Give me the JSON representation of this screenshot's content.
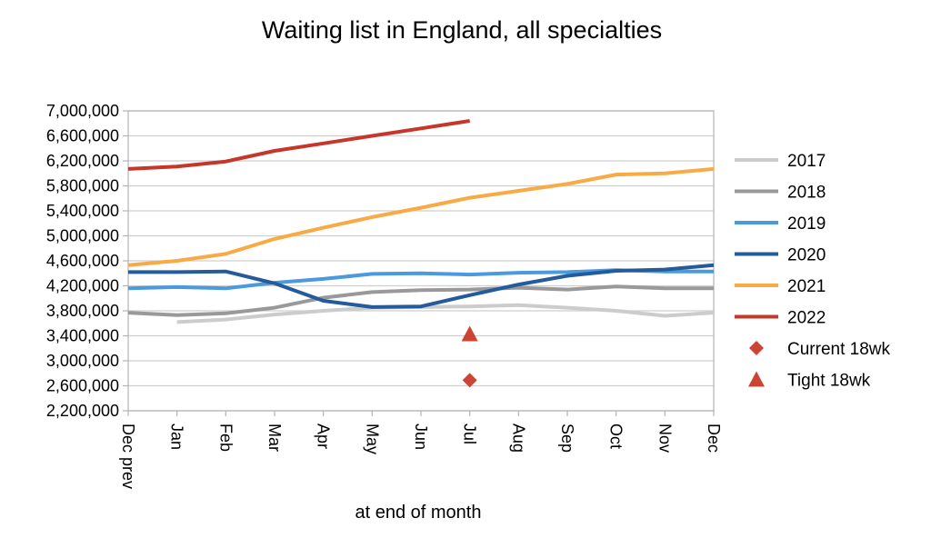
{
  "chart_data": {
    "type": "line",
    "title": "Waiting list in England, all specialties",
    "xlabel": "at end of month",
    "ylabel": "",
    "ylim": [
      2200000,
      7000000
    ],
    "y_ticks": [
      7000000,
      6600000,
      6200000,
      5800000,
      5400000,
      5000000,
      4600000,
      4200000,
      3800000,
      3400000,
      3000000,
      2600000,
      2200000
    ],
    "y_tick_labels": [
      "7,000,000",
      "6,600,000",
      "6,200,000",
      "5,800,000",
      "5,400,000",
      "5,000,000",
      "4,600,000",
      "4,200,000",
      "3,800,000",
      "3,400,000",
      "3,000,000",
      "2,600,000",
      "2,200,000"
    ],
    "categories": [
      "Dec prev",
      "Jan",
      "Feb",
      "Mar",
      "Apr",
      "May",
      "Jun",
      "Jul",
      "Aug",
      "Sep",
      "Oct",
      "Nov",
      "Dec"
    ],
    "grid": true,
    "legend_position": "right",
    "series": [
      {
        "name": "2017",
        "color": "#cccccc",
        "values": [
          null,
          3620000,
          3660000,
          3740000,
          3800000,
          3850000,
          3860000,
          3870000,
          3890000,
          3850000,
          3800000,
          3720000,
          3770000
        ]
      },
      {
        "name": "2018",
        "color": "#999999",
        "values": [
          3770000,
          3730000,
          3760000,
          3850000,
          4010000,
          4100000,
          4130000,
          4140000,
          4170000,
          4140000,
          4190000,
          4160000,
          4160000
        ]
      },
      {
        "name": "2019",
        "color": "#4a9ae0",
        "values": [
          4160000,
          4180000,
          4160000,
          4250000,
          4310000,
          4390000,
          4400000,
          4380000,
          4410000,
          4420000,
          4450000,
          4430000,
          4430000
        ]
      },
      {
        "name": "2020",
        "color": "#245b9a",
        "values": [
          4420000,
          4420000,
          4430000,
          4240000,
          3960000,
          3860000,
          3870000,
          4050000,
          4220000,
          4360000,
          4440000,
          4460000,
          4530000
        ]
      },
      {
        "name": "2021",
        "color": "#f8aa44",
        "values": [
          4530000,
          4600000,
          4710000,
          4950000,
          5130000,
          5300000,
          5450000,
          5610000,
          5720000,
          5830000,
          5980000,
          6000000,
          6070000
        ]
      },
      {
        "name": "2022",
        "color": "#c5372b",
        "values": [
          6070000,
          6110000,
          6190000,
          6360000,
          6480000,
          6600000,
          6720000,
          6840000,
          null,
          null,
          null,
          null,
          null
        ]
      }
    ],
    "markers": [
      {
        "name": "Current 18wk",
        "shape": "diamond",
        "color": "#cc4433",
        "category": "Jul",
        "value": 2690000
      },
      {
        "name": "Tight 18wk",
        "shape": "triangle",
        "color": "#cc4433",
        "category": "Jul",
        "value": 3430000
      }
    ]
  }
}
